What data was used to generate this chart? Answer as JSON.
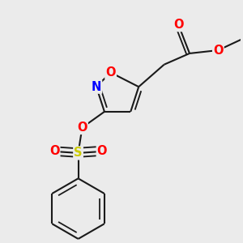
{
  "bg_color": "#ebebeb",
  "atom_colors": {
    "O": "#ff0000",
    "N": "#0000ff",
    "S": "#cccc00",
    "C": "#1a1a1a"
  },
  "bond_color": "#1a1a1a",
  "bond_width": 1.5,
  "font_size_atoms": 10.5
}
